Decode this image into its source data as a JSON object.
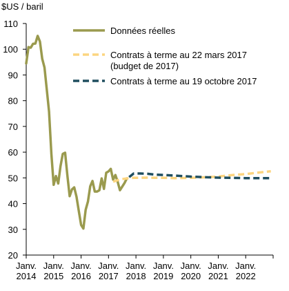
{
  "chart_data": {
    "type": "line",
    "y_unit_label": "$US / baril",
    "ylim": [
      20,
      110
    ],
    "yticks": [
      20,
      30,
      40,
      50,
      60,
      70,
      80,
      90,
      100,
      110
    ],
    "xlim": [
      "2014-01",
      "2022-12"
    ],
    "xticks": [
      {
        "date": "2014-01",
        "line1": "Janv.",
        "line2": "2014"
      },
      {
        "date": "2015-01",
        "line1": "Janv.",
        "line2": "2015"
      },
      {
        "date": "2016-01",
        "line1": "Janv.",
        "line2": "2016"
      },
      {
        "date": "2017-01",
        "line1": "Janv.",
        "line2": "2017"
      },
      {
        "date": "2018-01",
        "line1": "Janv.",
        "line2": "2018"
      },
      {
        "date": "2019-01",
        "line1": "Janv.",
        "line2": "2019"
      },
      {
        "date": "2020-01",
        "line1": "Janv.",
        "line2": "2020"
      },
      {
        "date": "2021-01",
        "line1": "Janv.",
        "line2": "2021"
      },
      {
        "date": "2022-01",
        "line1": "Janv.",
        "line2": "2022"
      }
    ],
    "legend_position": "top-right",
    "series": [
      {
        "name": "Données réelles",
        "color": "#9a9a4e",
        "style": "solid",
        "points": [
          [
            "2014-01",
            94.5
          ],
          [
            "2014-02",
            100.8
          ],
          [
            "2014-03",
            100.6
          ],
          [
            "2014-04",
            102.1
          ],
          [
            "2014-05",
            102.2
          ],
          [
            "2014-06",
            105.2
          ],
          [
            "2014-07",
            103.0
          ],
          [
            "2014-08",
            96.3
          ],
          [
            "2014-09",
            92.9
          ],
          [
            "2014-10",
            84.4
          ],
          [
            "2014-11",
            75.8
          ],
          [
            "2014-12",
            59.3
          ],
          [
            "2015-01",
            47.3
          ],
          [
            "2015-02",
            50.7
          ],
          [
            "2015-03",
            47.8
          ],
          [
            "2015-04",
            54.5
          ],
          [
            "2015-05",
            59.3
          ],
          [
            "2015-06",
            59.8
          ],
          [
            "2015-07",
            50.9
          ],
          [
            "2015-08",
            42.9
          ],
          [
            "2015-09",
            45.5
          ],
          [
            "2015-10",
            46.3
          ],
          [
            "2015-11",
            42.7
          ],
          [
            "2015-12",
            37.2
          ],
          [
            "2016-01",
            31.7
          ],
          [
            "2016-02",
            30.3
          ],
          [
            "2016-03",
            37.6
          ],
          [
            "2016-04",
            40.8
          ],
          [
            "2016-05",
            46.7
          ],
          [
            "2016-06",
            48.8
          ],
          [
            "2016-07",
            44.7
          ],
          [
            "2016-08",
            44.7
          ],
          [
            "2016-09",
            45.2
          ],
          [
            "2016-10",
            49.8
          ],
          [
            "2016-11",
            45.7
          ],
          [
            "2016-12",
            52.0
          ],
          [
            "2017-01",
            52.5
          ],
          [
            "2017-02",
            53.5
          ],
          [
            "2017-03",
            49.3
          ],
          [
            "2017-04",
            51.1
          ],
          [
            "2017-05",
            48.5
          ],
          [
            "2017-06",
            45.2
          ],
          [
            "2017-07",
            46.6
          ],
          [
            "2017-08",
            48.0
          ],
          [
            "2017-09",
            49.8
          ]
        ]
      },
      {
        "name": "Contrats à terme au 22 mars 2017 (budget de 2017)",
        "legend_lines": [
          "Contrats à terme au 22 mars 2017",
          "(budget de 2017)"
        ],
        "color": "#fcd580",
        "style": "dashed",
        "points": [
          [
            "2017-03",
            48.5
          ],
          [
            "2017-06",
            49.4
          ],
          [
            "2017-09",
            49.8
          ],
          [
            "2017-12",
            50.0
          ],
          [
            "2018-06",
            50.1
          ],
          [
            "2019-01",
            50.0
          ],
          [
            "2019-06",
            49.9
          ],
          [
            "2020-01",
            50.0
          ],
          [
            "2020-06",
            50.2
          ],
          [
            "2021-01",
            50.5
          ],
          [
            "2021-06",
            51.0
          ],
          [
            "2022-01",
            51.5
          ],
          [
            "2022-06",
            52.0
          ],
          [
            "2022-12",
            52.6
          ]
        ]
      },
      {
        "name": "Contrats à terme au 19 octobre 2017",
        "color": "#1f4e5f",
        "style": "dashed",
        "points": [
          [
            "2017-10",
            50.3
          ],
          [
            "2017-12",
            51.7
          ],
          [
            "2018-03",
            51.7
          ],
          [
            "2018-06",
            51.6
          ],
          [
            "2018-09",
            51.3
          ],
          [
            "2019-01",
            51.1
          ],
          [
            "2019-06",
            50.9
          ],
          [
            "2020-01",
            50.5
          ],
          [
            "2020-06",
            50.3
          ],
          [
            "2021-01",
            50.1
          ],
          [
            "2021-06",
            50.0
          ],
          [
            "2022-01",
            49.9
          ],
          [
            "2022-12",
            49.9
          ]
        ]
      }
    ]
  }
}
